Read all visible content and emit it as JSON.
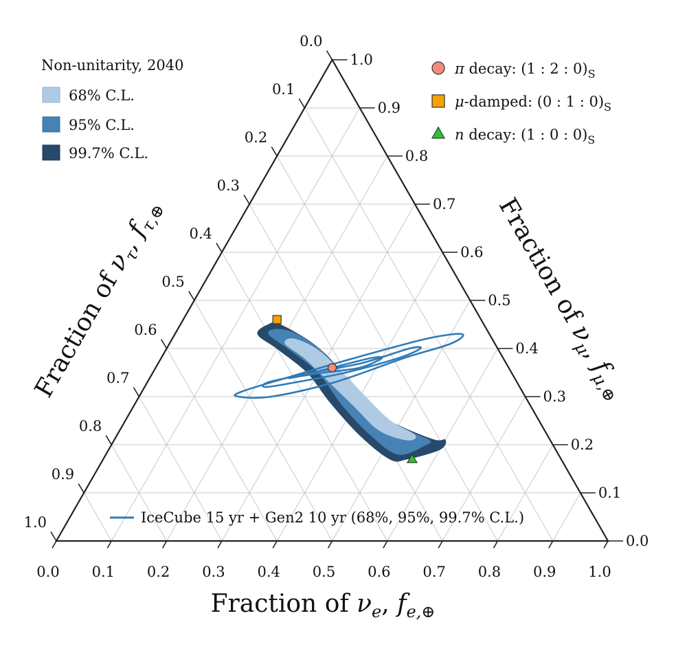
{
  "chart_data": {
    "type": "ternary",
    "axes": {
      "bottom": {
        "label": "Fraction of ",
        "symbol": "ν",
        "sub": "e",
        "comma": ", ",
        "fsym": "f",
        "fsub": "e,⊕",
        "ticks": [
          "0.0",
          "0.1",
          "0.2",
          "0.3",
          "0.4",
          "0.5",
          "0.6",
          "0.7",
          "0.8",
          "0.9",
          "1.0"
        ]
      },
      "right": {
        "label": "Fraction of ",
        "symbol": "ν",
        "sub": "μ",
        "comma": ", ",
        "fsym": "f",
        "fsub": "μ,⊕",
        "ticks": [
          "0.0",
          "0.1",
          "0.2",
          "0.3",
          "0.4",
          "0.5",
          "0.6",
          "0.7",
          "0.8",
          "0.9",
          "1.0"
        ]
      },
      "left": {
        "label": "Fraction of ",
        "symbol": "ν",
        "sub": "τ",
        "comma": ", ",
        "fsym": "f",
        "fsub": "τ,⊕",
        "ticks": [
          "0.0",
          "0.1",
          "0.2",
          "0.3",
          "0.4",
          "0.5",
          "0.6",
          "0.7",
          "0.8",
          "0.9",
          "1.0"
        ]
      }
    },
    "grid": true,
    "legend_top_left": {
      "title": "Non-unitarity, 2040",
      "entries": [
        {
          "label": "68% C.L.",
          "color": "#aecbe3"
        },
        {
          "label": "95% C.L.",
          "color": "#4682b4"
        },
        {
          "label": "99.7% C.L.",
          "color": "#274a6b"
        }
      ]
    },
    "legend_top_right": [
      {
        "symbol": "π",
        "label": " decay: (1 : 2 : 0)",
        "sub": "S",
        "marker": "circle",
        "color": "#f58a7d"
      },
      {
        "symbol": "μ",
        "label": "-damped: (0 : 1 : 0)",
        "sub": "S",
        "marker": "square",
        "color": "#f5a300"
      },
      {
        "symbol": "n",
        "label": " decay: (1 : 0 : 0)",
        "sub": "S",
        "marker": "triangle",
        "color": "#2dc52d"
      }
    ],
    "legend_bottom": {
      "label": "IceCube 15 yr + Gen2 10 yr (68%, 95%, 99.7% C.L.)",
      "color": "#2e7bb8"
    },
    "markers": [
      {
        "name": "pi-decay",
        "fe": 0.32,
        "fmu": 0.36,
        "color": "#f58a7d",
        "shape": "circle"
      },
      {
        "name": "mu-damped",
        "fe": 0.17,
        "fmu": 0.46,
        "color": "#f5a300",
        "shape": "square"
      },
      {
        "name": "n-decay",
        "fe": 0.56,
        "fmu": 0.17,
        "color": "#2dc52d",
        "shape": "triangle"
      }
    ],
    "regions": [
      {
        "level": "99.7% C.L.",
        "color": "#274a6b",
        "points": [
          [
            0.16,
            0.45
          ],
          [
            0.18,
            0.45
          ],
          [
            0.26,
            0.41
          ],
          [
            0.33,
            0.36
          ],
          [
            0.42,
            0.28
          ],
          [
            0.5,
            0.24
          ],
          [
            0.58,
            0.21
          ],
          [
            0.6,
            0.21
          ],
          [
            0.6,
            0.19
          ],
          [
            0.55,
            0.17
          ],
          [
            0.52,
            0.17
          ],
          [
            0.44,
            0.22
          ],
          [
            0.35,
            0.29
          ],
          [
            0.28,
            0.35
          ],
          [
            0.2,
            0.4
          ],
          [
            0.15,
            0.43
          ]
        ]
      },
      {
        "level": "95% C.L.",
        "color": "#4682b4",
        "points": [
          [
            0.18,
            0.44
          ],
          [
            0.22,
            0.43
          ],
          [
            0.29,
            0.39
          ],
          [
            0.36,
            0.33
          ],
          [
            0.44,
            0.27
          ],
          [
            0.52,
            0.23
          ],
          [
            0.57,
            0.21
          ],
          [
            0.57,
            0.2
          ],
          [
            0.53,
            0.18
          ],
          [
            0.46,
            0.22
          ],
          [
            0.38,
            0.28
          ],
          [
            0.3,
            0.35
          ],
          [
            0.22,
            0.4
          ],
          [
            0.17,
            0.43
          ]
        ]
      },
      {
        "level": "68% C.L.",
        "color": "#aecbe3",
        "points": [
          [
            0.22,
            0.42
          ],
          [
            0.27,
            0.4
          ],
          [
            0.33,
            0.36
          ],
          [
            0.41,
            0.3
          ],
          [
            0.48,
            0.25
          ],
          [
            0.54,
            0.22
          ],
          [
            0.53,
            0.21
          ],
          [
            0.47,
            0.23
          ],
          [
            0.4,
            0.28
          ],
          [
            0.33,
            0.33
          ],
          [
            0.26,
            0.38
          ],
          [
            0.21,
            0.41
          ]
        ]
      }
    ],
    "contours": [
      {
        "level": "99.7%",
        "points": [
          [
            0.18,
            0.31
          ],
          [
            0.25,
            0.34
          ],
          [
            0.35,
            0.38
          ],
          [
            0.46,
            0.42
          ],
          [
            0.52,
            0.43
          ],
          [
            0.51,
            0.41
          ],
          [
            0.44,
            0.38
          ],
          [
            0.34,
            0.33
          ],
          [
            0.24,
            0.3
          ],
          [
            0.18,
            0.3
          ]
        ]
      },
      {
        "level": "95%",
        "points": [
          [
            0.22,
            0.33
          ],
          [
            0.29,
            0.35
          ],
          [
            0.37,
            0.37
          ],
          [
            0.44,
            0.4
          ],
          [
            0.46,
            0.4
          ],
          [
            0.43,
            0.38
          ],
          [
            0.35,
            0.35
          ],
          [
            0.27,
            0.33
          ],
          [
            0.22,
            0.32
          ]
        ]
      },
      {
        "level": "68%",
        "points": [
          [
            0.26,
            0.34
          ],
          [
            0.32,
            0.36
          ],
          [
            0.38,
            0.38
          ],
          [
            0.4,
            0.38
          ],
          [
            0.37,
            0.36
          ],
          [
            0.31,
            0.35
          ],
          [
            0.26,
            0.34
          ]
        ]
      }
    ]
  }
}
